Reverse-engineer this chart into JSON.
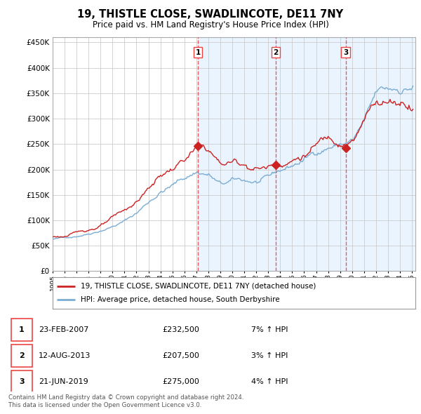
{
  "title": "19, THISTLE CLOSE, SWADLINCOTE, DE11 7NY",
  "subtitle": "Price paid vs. HM Land Registry's House Price Index (HPI)",
  "ylabel_values": [
    0,
    50000,
    100000,
    150000,
    200000,
    250000,
    300000,
    350000,
    400000,
    450000
  ],
  "hpi_color": "#7aadd4",
  "price_color": "#cc2222",
  "dashed_color": "#ee4444",
  "shade_color": "#ddeeff",
  "background_color": "#ffffff",
  "grid_color": "#cccccc",
  "sale_points": [
    {
      "date_num": 2007.14,
      "price": 232500,
      "label": "1"
    },
    {
      "date_num": 2013.62,
      "price": 207500,
      "label": "2"
    },
    {
      "date_num": 2019.47,
      "price": 275000,
      "label": "3"
    }
  ],
  "legend_entries": [
    {
      "label": "19, THISTLE CLOSE, SWADLINCOTE, DE11 7NY (detached house)",
      "color": "#cc2222",
      "lw": 2
    },
    {
      "label": "HPI: Average price, detached house, South Derbyshire",
      "color": "#7aadd4",
      "lw": 2
    }
  ],
  "table_rows": [
    {
      "num": "1",
      "date": "23-FEB-2007",
      "price": "£232,500",
      "change": "7% ↑ HPI"
    },
    {
      "num": "2",
      "date": "12-AUG-2013",
      "price": "£207,500",
      "change": "3% ↑ HPI"
    },
    {
      "num": "3",
      "date": "21-JUN-2019",
      "price": "£275,000",
      "change": "4% ↑ HPI"
    }
  ],
  "footer": "Contains HM Land Registry data © Crown copyright and database right 2024.\nThis data is licensed under the Open Government Licence v3.0."
}
